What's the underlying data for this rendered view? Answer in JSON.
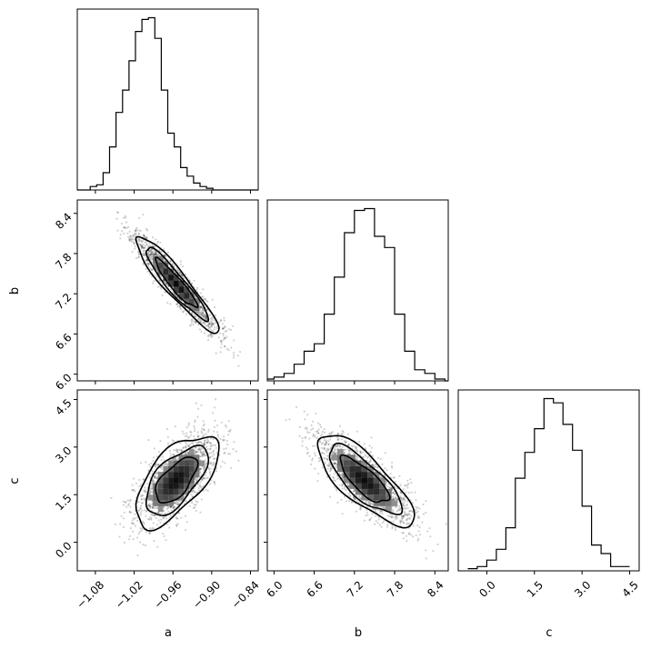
{
  "chart_data": [
    {
      "panel": "a-hist",
      "type": "histogram",
      "variable": "a",
      "bin_edges": [
        -1.108,
        -1.098,
        -1.088,
        -1.078,
        -1.068,
        -1.058,
        -1.048,
        -1.038,
        -1.028,
        -1.018,
        -1.008,
        -0.998,
        -0.988,
        -0.978,
        -0.968,
        -0.958,
        -0.948,
        -0.938,
        -0.928,
        -0.918,
        -0.908,
        -0.898,
        -0.888,
        -0.878,
        -0.868,
        -0.858,
        -0.848,
        -0.838,
        -0.828
      ],
      "counts": [
        0,
        0,
        2,
        3,
        10,
        25,
        45,
        58,
        75,
        92,
        99,
        100,
        88,
        58,
        33,
        25,
        13,
        8,
        4,
        2,
        1,
        0,
        0,
        0,
        0,
        0,
        0,
        0
      ],
      "xlim": [
        -1.108,
        -0.828
      ],
      "xticks": [
        -1.08,
        -1.02,
        -0.96,
        -0.9,
        -0.84
      ]
    },
    {
      "panel": "b-hist",
      "type": "histogram",
      "variable": "b",
      "bin_edges": [
        5.85,
        6.0,
        6.15,
        6.3,
        6.45,
        6.6,
        6.75,
        6.9,
        7.05,
        7.2,
        7.35,
        7.5,
        7.65,
        7.8,
        7.95,
        8.1,
        8.25,
        8.4,
        8.55,
        8.7
      ],
      "counts": [
        1,
        2,
        4,
        9,
        16,
        20,
        36,
        56,
        80,
        92,
        93,
        78,
        72,
        36,
        16,
        6,
        4,
        1,
        0
      ],
      "xlim": [
        5.9,
        8.6
      ],
      "xticks": [
        6.0,
        6.6,
        7.2,
        7.8,
        8.4
      ]
    },
    {
      "panel": "c-hist",
      "type": "histogram",
      "variable": "c",
      "bin_edges": [
        -0.6,
        -0.3,
        0.0,
        0.3,
        0.6,
        0.9,
        1.2,
        1.5,
        1.8,
        2.1,
        2.4,
        2.7,
        3.0,
        3.3,
        3.6,
        3.9,
        4.2,
        4.5
      ],
      "counts": [
        1,
        2,
        5,
        10,
        20,
        43,
        55,
        66,
        80,
        78,
        68,
        56,
        30,
        12,
        8,
        2,
        2
      ],
      "xlim": [
        -0.9,
        4.8
      ],
      "xticks": [
        0.0,
        1.5,
        3.0,
        4.5
      ]
    },
    {
      "panel": "a-b",
      "type": "scatter-density",
      "x": "a",
      "y": "b",
      "xlim": [
        -1.108,
        -0.828
      ],
      "ylim": [
        5.9,
        8.6
      ],
      "mean": [
        -0.955,
        7.35
      ],
      "sd": [
        0.032,
        0.36
      ],
      "corr": -0.93,
      "yticks": [
        6.0,
        6.6,
        7.2,
        7.8,
        8.4
      ],
      "contour_levels_sigma": [
        1,
        1.5,
        2
      ]
    },
    {
      "panel": "a-c",
      "type": "scatter-density",
      "x": "a",
      "y": "c",
      "xlim": [
        -1.108,
        -0.828
      ],
      "ylim": [
        -0.9,
        4.8
      ],
      "mean": [
        -0.955,
        1.95
      ],
      "sd": [
        0.032,
        0.72
      ],
      "corr": 0.63,
      "yticks": [
        0.0,
        1.5,
        3.0,
        4.5
      ],
      "xticks": [
        -1.08,
        -1.02,
        -0.96,
        -0.9,
        -0.84
      ],
      "contour_levels_sigma": [
        1,
        1.5,
        2
      ]
    },
    {
      "panel": "b-c",
      "type": "scatter-density",
      "x": "b",
      "y": "c",
      "xlim": [
        5.9,
        8.6
      ],
      "ylim": [
        -0.9,
        4.8
      ],
      "mean": [
        7.35,
        1.95
      ],
      "sd": [
        0.36,
        0.72
      ],
      "corr": -0.78,
      "xticks": [
        6.0,
        6.6,
        7.2,
        7.8,
        8.4
      ],
      "contour_levels_sigma": [
        1,
        1.5,
        2
      ]
    }
  ],
  "labels": {
    "a": "a",
    "b": "b",
    "c": "c"
  }
}
